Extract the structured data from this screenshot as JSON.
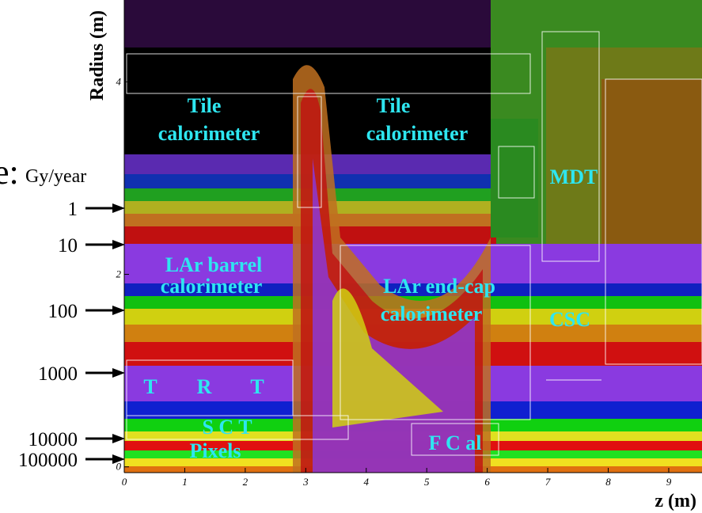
{
  "legend": {
    "cut_title": "e:",
    "unit": "Gy/year",
    "levels": [
      "1",
      "10",
      "100",
      "1000",
      "10000",
      "100000"
    ]
  },
  "axes": {
    "y_label": "Radius (m)",
    "x_label": "z (m)",
    "xlim": [
      0,
      9.55
    ],
    "ylim": [
      -0.06,
      4.85
    ],
    "xticks": [
      0,
      1,
      2,
      3,
      4,
      5,
      6,
      7,
      8,
      9
    ],
    "yticks": [
      0,
      2,
      4
    ]
  },
  "regions": [
    [
      "Tile",
      "calorimeter"
    ],
    [
      "Tile",
      "calorimeter"
    ],
    [
      "MDT"
    ],
    [
      "LAr barrel",
      "calorimeter"
    ],
    [
      "LAr end-cap",
      "calorimeter"
    ],
    [
      "CSC"
    ],
    [
      "T",
      "R",
      "T"
    ],
    [
      "S C T"
    ],
    [
      "F C al"
    ],
    [
      "Pixels"
    ]
  ]
}
